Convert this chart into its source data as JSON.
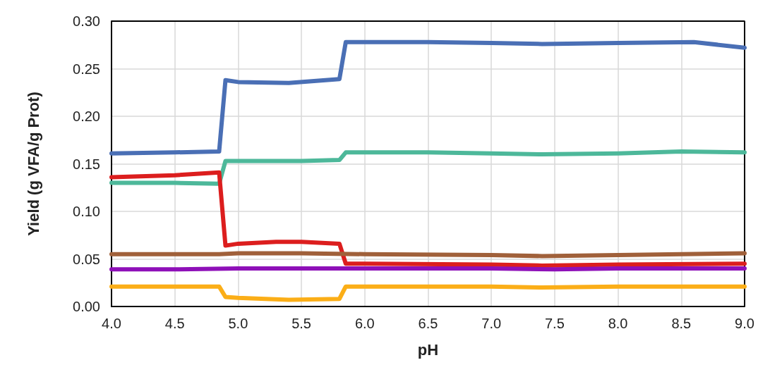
{
  "chart_data": {
    "type": "line",
    "xlabel": "pH",
    "ylabel": "Yield (g VFA/g Prot)",
    "xlim": [
      4.0,
      9.0
    ],
    "xticks": [
      {
        "value": 4,
        "label": "4.0"
      },
      {
        "value": 4.5,
        "label": "4.5"
      },
      {
        "value": 5,
        "label": "5.0"
      },
      {
        "value": 5.5,
        "label": "5.5"
      },
      {
        "value": 6,
        "label": "6.0"
      },
      {
        "value": 6.5,
        "label": "6.5"
      },
      {
        "value": 7,
        "label": "7.0"
      },
      {
        "value": 7.5,
        "label": "7.5"
      },
      {
        "value": 8,
        "label": "8.0"
      },
      {
        "value": 8.5,
        "label": "8.5"
      },
      {
        "value": 9,
        "label": "9.0"
      }
    ],
    "ylim": [
      0,
      0.3
    ],
    "yticks": [
      {
        "value": 0,
        "label": "0.00"
      },
      {
        "value": 0.05,
        "label": "0.05"
      },
      {
        "value": 0.1,
        "label": "0.10"
      },
      {
        "value": 0.15,
        "label": "0.15"
      },
      {
        "value": 0.2,
        "label": "0.20"
      },
      {
        "value": 0.25,
        "label": "0.25"
      },
      {
        "value": 0.3,
        "label": "0.30"
      }
    ],
    "grid": true,
    "marker": "none",
    "line_style": "solid",
    "series": [
      {
        "color": "#4a6fb5",
        "x": [
          4.0,
          4.5,
          4.85,
          4.9,
          5.0,
          5.4,
          5.8,
          5.85,
          6.0,
          6.5,
          7.0,
          7.4,
          8.0,
          8.6,
          9.0
        ],
        "values": [
          0.161,
          0.162,
          0.163,
          0.238,
          0.236,
          0.235,
          0.239,
          0.278,
          0.278,
          0.278,
          0.277,
          0.276,
          0.277,
          0.278,
          0.272
        ]
      },
      {
        "color": "#4db89a",
        "x": [
          4.0,
          4.5,
          4.85,
          4.9,
          5.0,
          5.5,
          5.8,
          5.85,
          6.0,
          6.5,
          7.0,
          7.4,
          8.0,
          8.5,
          9.0
        ],
        "values": [
          0.13,
          0.13,
          0.129,
          0.153,
          0.153,
          0.153,
          0.154,
          0.162,
          0.162,
          0.162,
          0.161,
          0.16,
          0.161,
          0.163,
          0.162
        ]
      },
      {
        "color": "#dc1e1e",
        "x": [
          4.0,
          4.5,
          4.85,
          4.9,
          5.0,
          5.3,
          5.5,
          5.8,
          5.85,
          6.0,
          7.0,
          7.4,
          8.0,
          9.0
        ],
        "values": [
          0.136,
          0.138,
          0.141,
          0.064,
          0.066,
          0.068,
          0.068,
          0.066,
          0.045,
          0.045,
          0.044,
          0.043,
          0.044,
          0.045
        ]
      },
      {
        "color": "#a0603a",
        "x": [
          4.0,
          4.5,
          4.85,
          5.0,
          5.5,
          6.0,
          7.0,
          7.4,
          8.0,
          8.5,
          9.0
        ],
        "values": [
          0.055,
          0.055,
          0.055,
          0.056,
          0.056,
          0.055,
          0.054,
          0.053,
          0.054,
          0.055,
          0.056
        ]
      },
      {
        "color": "#8e10b8",
        "x": [
          4.0,
          4.5,
          5.0,
          6.0,
          7.0,
          7.5,
          8.0,
          9.0
        ],
        "values": [
          0.039,
          0.039,
          0.04,
          0.04,
          0.04,
          0.039,
          0.04,
          0.04
        ]
      },
      {
        "color": "#fbae17",
        "x": [
          4.0,
          4.5,
          4.85,
          4.9,
          5.0,
          5.4,
          5.8,
          5.85,
          6.0,
          7.0,
          7.4,
          8.0,
          9.0
        ],
        "values": [
          0.021,
          0.021,
          0.021,
          0.01,
          0.009,
          0.007,
          0.008,
          0.021,
          0.021,
          0.021,
          0.02,
          0.021,
          0.021
        ]
      }
    ]
  }
}
